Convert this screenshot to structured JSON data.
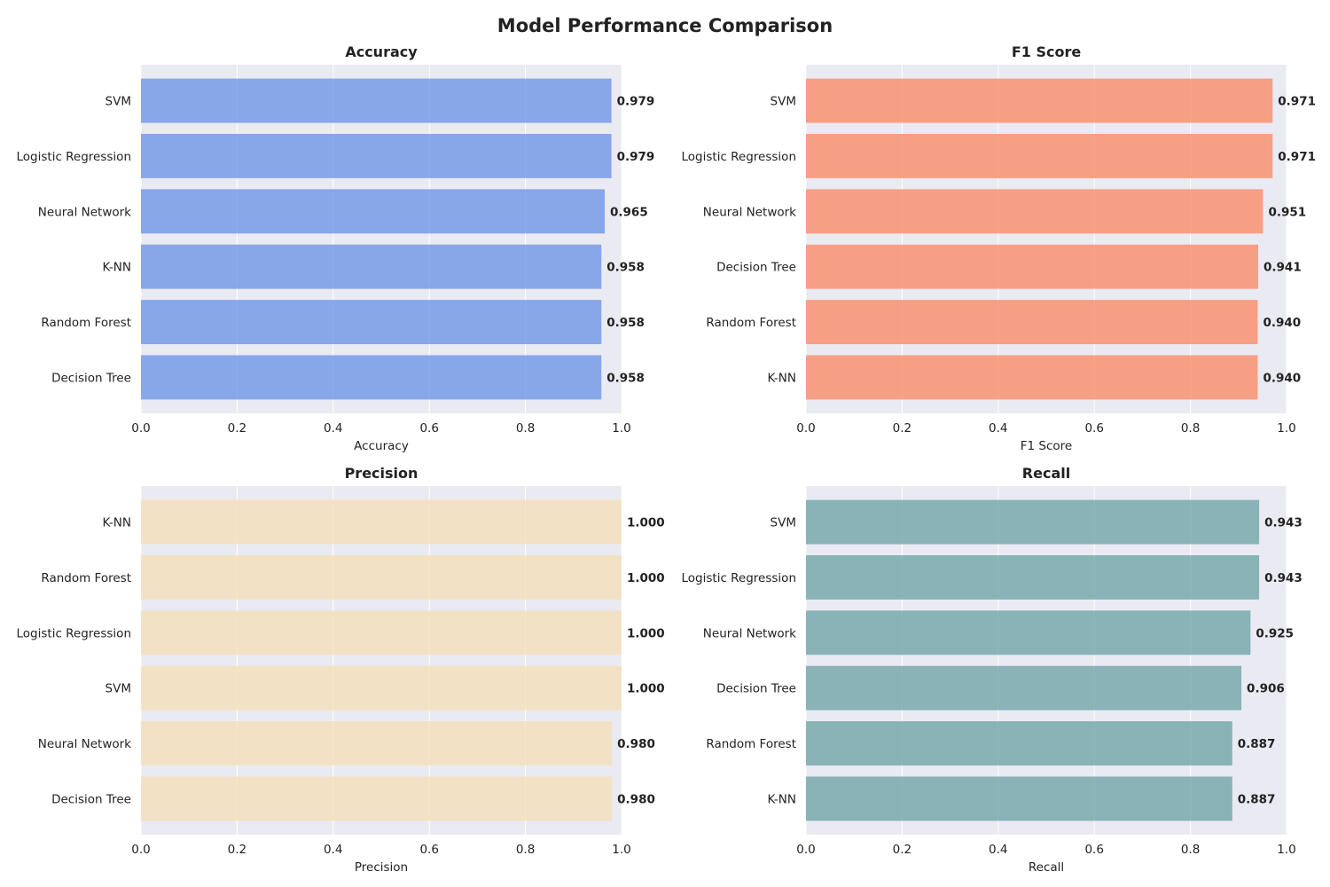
{
  "figure": {
    "title": "Model Performance Comparison"
  },
  "colors": {
    "plot_background": "#EAEAF2",
    "grid": "#FFFFFF",
    "text": "#222222"
  },
  "chart_data": [
    {
      "type": "bar",
      "orientation": "horizontal",
      "title": "Accuracy",
      "xlabel": "Accuracy",
      "ylabel": "",
      "xlim": [
        0,
        1.0
      ],
      "xticks": [
        "0.0",
        "0.2",
        "0.4",
        "0.6",
        "0.8",
        "1.0"
      ],
      "grid": true,
      "color": "#6F96E6",
      "categories": [
        "SVM",
        "Logistic Regression",
        "Neural Network",
        "K-NN",
        "Random Forest",
        "Decision Tree"
      ],
      "values": [
        0.979,
        0.979,
        0.965,
        0.958,
        0.958,
        0.958
      ],
      "value_labels": [
        "0.979",
        "0.979",
        "0.965",
        "0.958",
        "0.958",
        "0.958"
      ]
    },
    {
      "type": "bar",
      "orientation": "horizontal",
      "title": "F1 Score",
      "xlabel": "F1 Score",
      "ylabel": "",
      "xlim": [
        0,
        1.0
      ],
      "xticks": [
        "0.0",
        "0.2",
        "0.4",
        "0.6",
        "0.8",
        "1.0"
      ],
      "grid": true,
      "color": "#FA8C68",
      "categories": [
        "SVM",
        "Logistic Regression",
        "Neural Network",
        "Decision Tree",
        "Random Forest",
        "K-NN"
      ],
      "values": [
        0.971,
        0.971,
        0.951,
        0.941,
        0.94,
        0.94
      ],
      "value_labels": [
        "0.971",
        "0.971",
        "0.951",
        "0.941",
        "0.940",
        "0.940"
      ]
    },
    {
      "type": "bar",
      "orientation": "horizontal",
      "title": "Precision",
      "xlabel": "Precision",
      "ylabel": "",
      "xlim": [
        0,
        1.0
      ],
      "xticks": [
        "0.0",
        "0.2",
        "0.4",
        "0.6",
        "0.8",
        "1.0"
      ],
      "grid": true,
      "color": "#F4DEB8",
      "categories": [
        "K-NN",
        "Random Forest",
        "Logistic Regression",
        "SVM",
        "Neural Network",
        "Decision Tree"
      ],
      "values": [
        1.0,
        1.0,
        1.0,
        1.0,
        0.98,
        0.98
      ],
      "value_labels": [
        "1.000",
        "1.000",
        "1.000",
        "1.000",
        "0.980",
        "0.980"
      ]
    },
    {
      "type": "bar",
      "orientation": "horizontal",
      "title": "Recall",
      "xlabel": "Recall",
      "ylabel": "",
      "xlim": [
        0,
        1.0
      ],
      "xticks": [
        "0.0",
        "0.2",
        "0.4",
        "0.6",
        "0.8",
        "1.0"
      ],
      "grid": true,
      "color": "#71A5A7",
      "categories": [
        "SVM",
        "Logistic Regression",
        "Neural Network",
        "Decision Tree",
        "Random Forest",
        "K-NN"
      ],
      "values": [
        0.943,
        0.943,
        0.925,
        0.906,
        0.887,
        0.887
      ],
      "value_labels": [
        "0.943",
        "0.943",
        "0.925",
        "0.906",
        "0.887",
        "0.887"
      ]
    }
  ]
}
